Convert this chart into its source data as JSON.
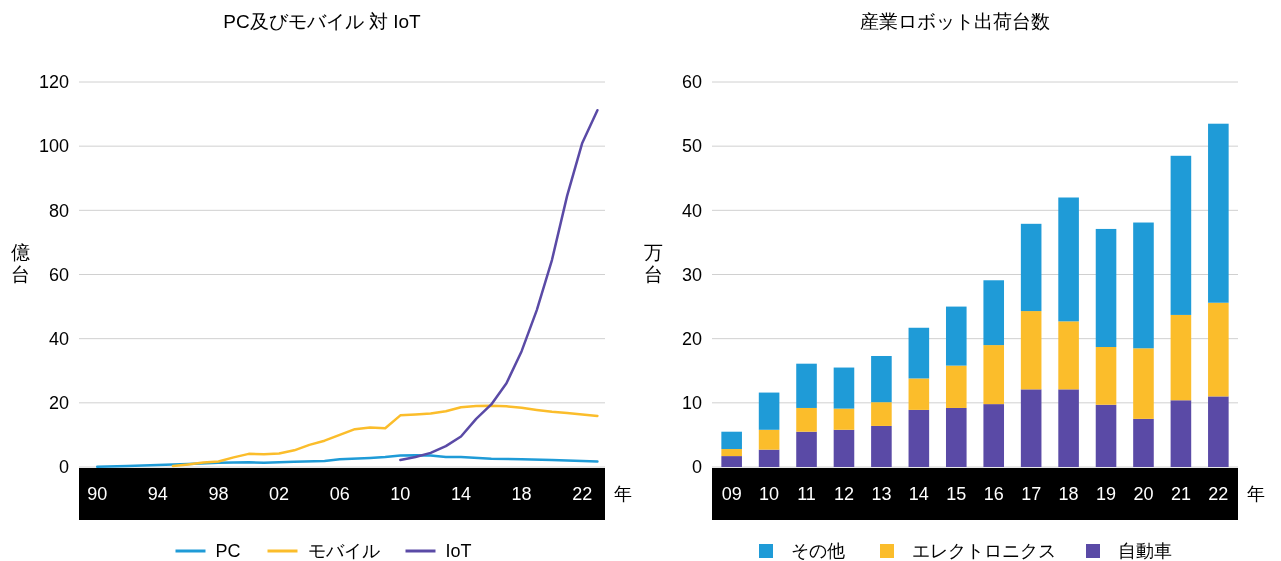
{
  "chart_data": [
    {
      "type": "line",
      "title": "PC及びモバイル 対 IoT",
      "xlabel": "年",
      "ylabel": "億台",
      "xlim": [
        1988.8,
        2023.5
      ],
      "xticks": [
        {
          "value": 1990,
          "label": "90"
        },
        {
          "value": 1994,
          "label": "94"
        },
        {
          "value": 1998,
          "label": "98"
        },
        {
          "value": 2002,
          "label": "02"
        },
        {
          "value": 2006,
          "label": "06"
        },
        {
          "value": 2010,
          "label": "10"
        },
        {
          "value": 2014,
          "label": "14"
        },
        {
          "value": 2018,
          "label": "18"
        },
        {
          "value": 2022,
          "label": "22"
        }
      ],
      "ylim": [
        0,
        120
      ],
      "yticks": [
        0,
        20,
        40,
        60,
        80,
        100,
        120
      ],
      "grid": "y",
      "legend": "bottom",
      "series": [
        {
          "name": "PC",
          "color": "#1f9bd7",
          "x": [
            1990,
            1992,
            1994,
            1996,
            1998,
            2000,
            2001,
            2003,
            2005,
            2006,
            2008,
            2009,
            2010,
            2011,
            2012,
            2013,
            2014,
            2016,
            2018,
            2020,
            2023
          ],
          "values": [
            0.1,
            0.3,
            0.6,
            0.9,
            1.3,
            1.5,
            1.3,
            1.6,
            1.9,
            2.4,
            2.8,
            3.1,
            3.6,
            3.7,
            3.6,
            3.1,
            3.1,
            2.6,
            2.4,
            2.2,
            1.7
          ]
        },
        {
          "name": "モバイル",
          "color": "#fbbd2b",
          "x": [
            1995,
            1996,
            1997,
            1998,
            1999,
            2000,
            2001,
            2002,
            2003,
            2004,
            2005,
            2006,
            2007,
            2008,
            2009,
            2010,
            2011,
            2012,
            2013,
            2014,
            2015,
            2016,
            2017,
            2018,
            2019,
            2020,
            2021,
            2022,
            2023
          ],
          "values": [
            0.3,
            0.8,
            1.4,
            1.7,
            3.0,
            4.1,
            4.0,
            4.2,
            5.2,
            6.9,
            8.2,
            10.0,
            11.8,
            12.3,
            12.1,
            16.1,
            16.4,
            16.7,
            17.4,
            18.6,
            19.0,
            19.1,
            18.9,
            18.5,
            17.8,
            17.2,
            16.8,
            16.4,
            15.9
          ]
        },
        {
          "name": "IoT",
          "color": "#5a4aa6",
          "x": [
            2010,
            2011,
            2012,
            2013,
            2014,
            2015,
            2016,
            2017,
            2018,
            2019,
            2020,
            2021,
            2022,
            2023
          ],
          "values": [
            2.2,
            3.1,
            4.4,
            6.5,
            9.5,
            15.0,
            19.5,
            26.1,
            36.1,
            48.9,
            64.5,
            84.5,
            101,
            111.2
          ]
        }
      ]
    },
    {
      "type": "bar",
      "stacked": true,
      "title": "産業ロボット出荷台数",
      "xlabel": "年",
      "ylabel": "万台",
      "categories": [
        "09",
        "10",
        "11",
        "12",
        "13",
        "14",
        "15",
        "16",
        "17",
        "18",
        "19",
        "20",
        "21",
        "22"
      ],
      "ylim": [
        0,
        60
      ],
      "yticks": [
        0,
        10,
        20,
        30,
        40,
        50,
        60
      ],
      "grid": "y",
      "legend": "bottom",
      "series": [
        {
          "name": "自動車",
          "color": "#5a4aa6",
          "values": [
            1.7,
            2.7,
            5.5,
            5.8,
            6.4,
            8.9,
            9.2,
            9.8,
            12.1,
            12.1,
            9.7,
            7.5,
            10.4,
            11.0
          ]
        },
        {
          "name": "エレクトロニクス",
          "color": "#fbbd2b",
          "values": [
            1.1,
            3.1,
            3.7,
            3.3,
            3.7,
            4.9,
            6.6,
            9.2,
            12.2,
            10.6,
            9.0,
            11.0,
            13.3,
            14.6
          ]
        },
        {
          "name": "その他",
          "color": "#1f9bd7",
          "values": [
            2.7,
            5.8,
            6.9,
            6.4,
            7.2,
            7.9,
            9.2,
            10.1,
            13.6,
            19.3,
            18.4,
            19.6,
            24.8,
            27.9
          ]
        }
      ]
    }
  ]
}
